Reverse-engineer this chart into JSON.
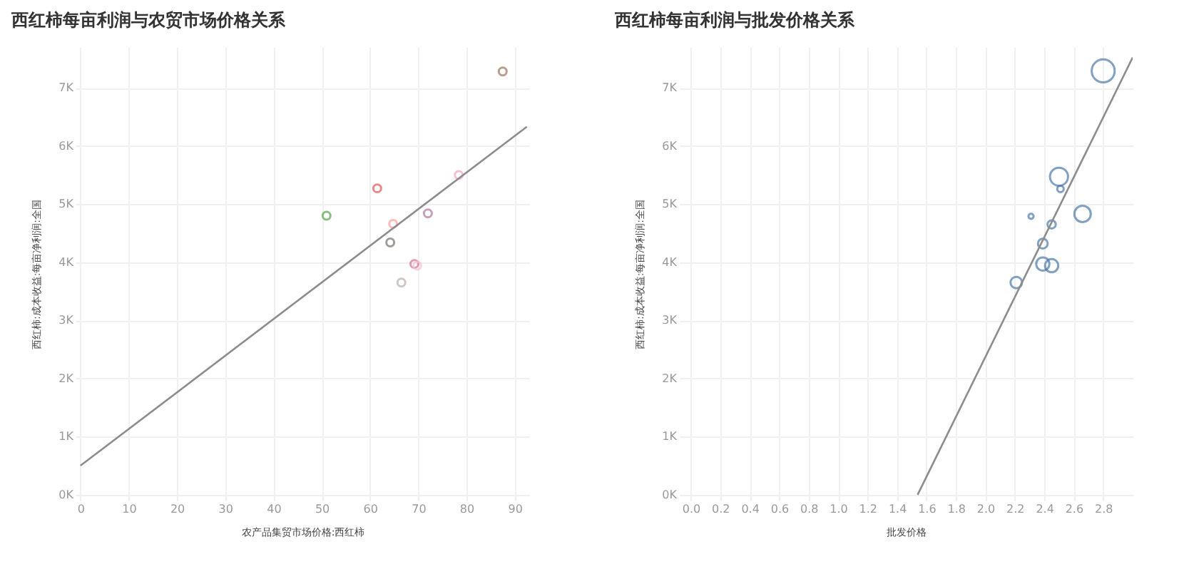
{
  "chart_data": [
    {
      "type": "scatter",
      "title": "西红柿每亩利润与农贸市场价格关系",
      "xlabel": "农产品集贸市场价格:西红柿",
      "ylabel": "西红柿:成本收益:每亩净利润:全国",
      "xlim": [
        -1,
        93
      ],
      "xticks": [
        0,
        10,
        20,
        30,
        40,
        50,
        60,
        70,
        80,
        90
      ],
      "ylim": [
        -100,
        7700
      ],
      "yticks": [
        {
          "value": 0,
          "label": "0K"
        },
        {
          "value": 1000,
          "label": "1K"
        },
        {
          "value": 2000,
          "label": "2K"
        },
        {
          "value": 3000,
          "label": "3K"
        },
        {
          "value": 4000,
          "label": "4K"
        },
        {
          "value": 5000,
          "label": "5K"
        },
        {
          "value": 6000,
          "label": "6K"
        },
        {
          "value": 7000,
          "label": "7K"
        }
      ],
      "grid": true,
      "series": [
        {
          "marker": "circle",
          "x": [
            51.0,
            61.5,
            64.8,
            64.2,
            66.5,
            69.2,
            69.8,
            72.0,
            78.4,
            87.5
          ],
          "values": [
            4800,
            5270,
            4660,
            4340,
            3650,
            3970,
            3940,
            4840,
            5500,
            7280
          ],
          "colors": [
            "#59a14f",
            "#e15759",
            "#ff9d9a",
            "#79706e",
            "#bab0ac",
            "#d37295",
            "#fabfd2",
            "#b07aa1",
            "#f1a2c4",
            "#9c755f"
          ]
        },
        {
          "type": "line",
          "marker": "none",
          "color": "#8c8c8c",
          "x": [
            0,
            92.5
          ],
          "values": [
            500,
            6330
          ]
        }
      ]
    },
    {
      "type": "bubble",
      "title": "西红柿每亩利润与批发价格关系",
      "xlabel": "批发价格",
      "ylabel": "西红柿:成本收益:每亩净利润:全国",
      "xlim": [
        -0.08,
        3.0
      ],
      "xticks": [
        {
          "value": 0,
          "label": "0.0"
        },
        0.2,
        0.4,
        0.6,
        0.8,
        {
          "value": 1,
          "label": "1.0"
        },
        1.2,
        1.4,
        1.6,
        1.8,
        {
          "value": 2,
          "label": "2.0"
        },
        2.2,
        2.4,
        2.6,
        2.8
      ],
      "ylim": [
        -100,
        7700
      ],
      "yticks": [
        {
          "value": 0,
          "label": "0K"
        },
        {
          "value": 1000,
          "label": "1K"
        },
        {
          "value": 2000,
          "label": "2K"
        },
        {
          "value": 3000,
          "label": "3K"
        },
        {
          "value": 4000,
          "label": "4K"
        },
        {
          "value": 5000,
          "label": "5K"
        },
        {
          "value": 6000,
          "label": "6K"
        },
        {
          "value": 7000,
          "label": "7K"
        }
      ],
      "grid": true,
      "series": [
        {
          "marker": "circle",
          "color": "#4e79a7",
          "x": [
            2.8,
            2.5,
            2.51,
            2.31,
            2.66,
            2.45,
            2.39,
            2.39,
            2.45,
            2.21
          ],
          "values": [
            7290,
            5470,
            5260,
            4790,
            4830,
            4650,
            4320,
            3970,
            3940,
            3650
          ],
          "sizes": [
            1,
            0.62,
            0.08,
            0.05,
            0.51,
            0.13,
            0.18,
            0.33,
            0.33,
            0.25
          ]
        },
        {
          "type": "line",
          "marker": "none",
          "color": "#8c8c8c",
          "x": [
            1.54,
            3.0
          ],
          "values": [
            0,
            7520
          ]
        }
      ]
    }
  ]
}
